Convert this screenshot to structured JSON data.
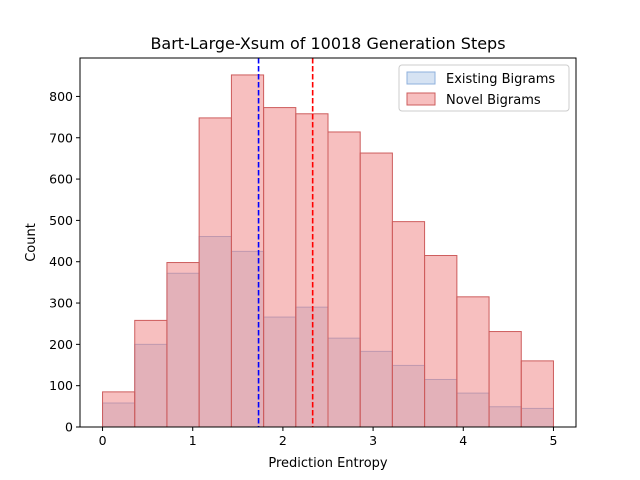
{
  "chart_data": {
    "type": "bar",
    "title": "Bart-Large-Xsum of 10018 Generation Steps",
    "xlabel": "Prediction Entropy",
    "ylabel": "Count",
    "xlim": [
      -0.25,
      5.25
    ],
    "ylim": [
      0,
      893
    ],
    "x_ticks": [
      "0",
      "1",
      "2",
      "3",
      "4",
      "5"
    ],
    "y_ticks": [
      "0",
      "100",
      "200",
      "300",
      "400",
      "500",
      "600",
      "700",
      "800"
    ],
    "bin_edges": [
      0,
      0.357,
      0.714,
      1.071,
      1.429,
      1.786,
      2.143,
      2.5,
      2.857,
      3.214,
      3.571,
      3.929,
      4.286,
      4.643,
      5.0
    ],
    "series": [
      {
        "name": "Existing Bigrams",
        "fill": "#aec7e8",
        "edge": "#8fb0dd",
        "values": [
          58,
          200,
          372,
          461,
          425,
          266,
          290,
          215,
          183,
          149,
          115,
          82,
          49,
          45
        ]
      },
      {
        "name": "Novel Bigrams",
        "fill": "#f08080",
        "edge": "#cd5c5c",
        "values": [
          85,
          258,
          398,
          748,
          852,
          773,
          758,
          714,
          663,
          497,
          415,
          315,
          231,
          160
        ]
      }
    ],
    "vlines": [
      {
        "x": 1.73,
        "color": "#0000ff"
      },
      {
        "x": 2.33,
        "color": "#ff0000"
      }
    ],
    "legend_position": "top-right",
    "grid": false
  }
}
